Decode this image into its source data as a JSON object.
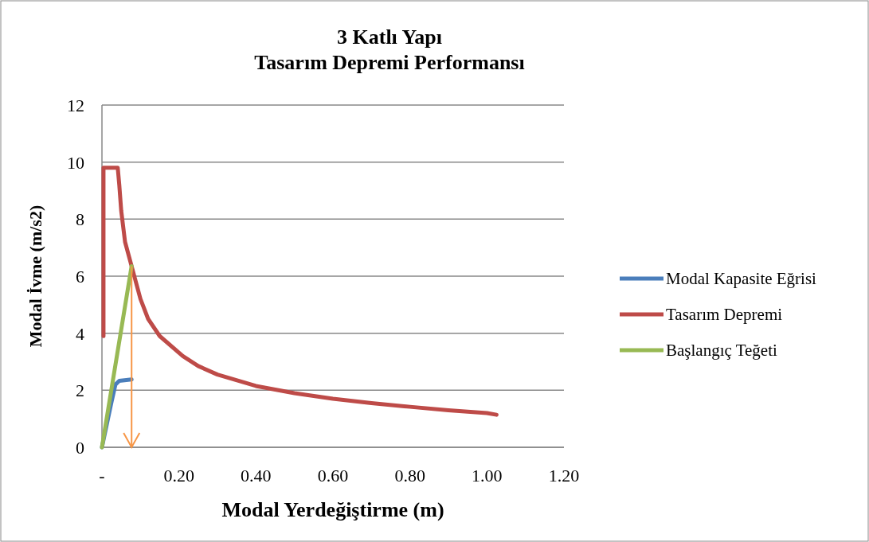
{
  "chart_data": {
    "type": "line",
    "title": "3 Katlı Yapı\nTasarım Depremi Performansı",
    "xlabel": "Modal Yerdeğiştirme (m)",
    "ylabel": "Modal İvme (m/s2)",
    "xlim": [
      0,
      1.2
    ],
    "xticks": [
      {
        "value": 0,
        "label": "-"
      },
      {
        "value": 0.2,
        "label": "0.20"
      },
      {
        "value": 0.4,
        "label": "0.40"
      },
      {
        "value": 0.6,
        "label": "0.60"
      },
      {
        "value": 0.8,
        "label": "0.80"
      },
      {
        "value": 1,
        "label": "1.00"
      },
      {
        "value": 1.2,
        "label": "1.20"
      }
    ],
    "ylim": [
      0,
      12
    ],
    "yticks": [
      0,
      2,
      4,
      6,
      8,
      10,
      12
    ],
    "grid": "y",
    "legend": "right",
    "marker": "none",
    "line_style": "solid",
    "series": [
      {
        "name": "Modal Kapasite Eğrisi",
        "color": "#4a7ebb",
        "x": [
          0,
          0.025,
          0.035,
          0.045,
          0.077
        ],
        "values": [
          0,
          1.6,
          2.2,
          2.33,
          2.38
        ]
      },
      {
        "name": "Tasarım Depremi",
        "color": "#be4b48",
        "x": [
          0.004,
          0.004,
          0.041,
          0.045,
          0.05,
          0.06,
          0.077,
          0.1,
          0.12,
          0.15,
          0.21,
          0.25,
          0.3,
          0.4,
          0.5,
          0.6,
          0.7,
          0.8,
          0.9,
          1,
          1.025
        ],
        "values": [
          3.9,
          9.8,
          9.8,
          9.2,
          8.3,
          7.2,
          6.35,
          5.2,
          4.5,
          3.9,
          3.2,
          2.85,
          2.55,
          2.15,
          1.9,
          1.7,
          1.55,
          1.42,
          1.3,
          1.2,
          1.14
        ]
      },
      {
        "name": "Başlangıç Teğeti",
        "color": "#98b954",
        "x": [
          0,
          0.077
        ],
        "values": [
          0,
          6.35
        ]
      }
    ]
  }
}
